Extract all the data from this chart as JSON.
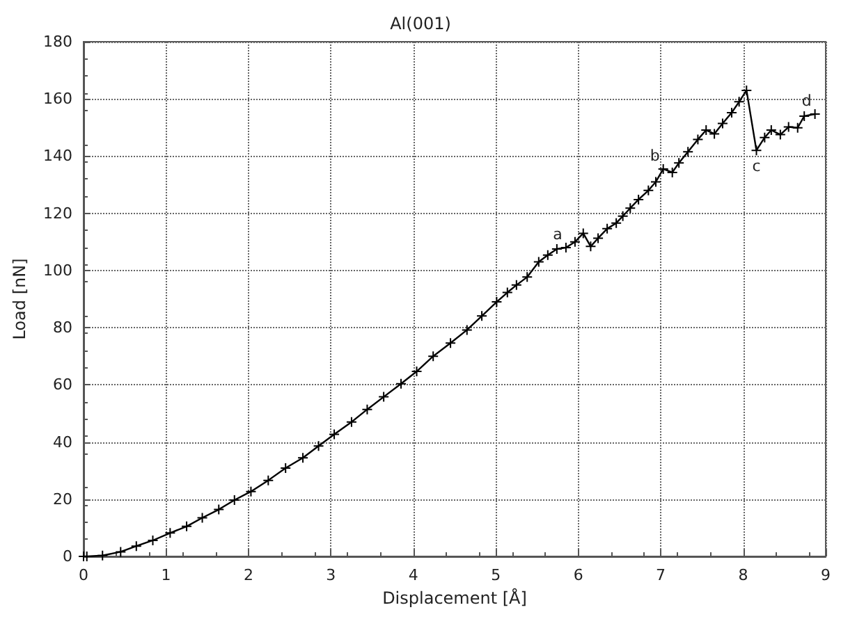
{
  "chart_data": {
    "type": "line",
    "title": "Al(001)",
    "xlabel": "Displacement [Å]",
    "ylabel": "Load [nN]",
    "x": [
      0,
      0.04,
      0.23,
      0.45,
      0.64,
      0.84,
      1.05,
      1.25,
      1.44,
      1.64,
      1.83,
      2.03,
      2.24,
      2.45,
      2.66,
      2.85,
      3.04,
      3.25,
      3.44,
      3.64,
      3.85,
      4.04,
      4.24,
      4.45,
      4.65,
      4.83,
      5.01,
      5.14,
      5.25,
      5.38,
      5.52,
      5.63,
      5.74,
      5.85,
      5.96,
      6.06,
      6.15,
      6.24,
      6.35,
      6.46,
      6.54,
      6.63,
      6.73,
      6.85,
      6.94,
      7.03,
      7.14,
      7.22,
      7.33,
      7.45,
      7.55,
      7.65,
      7.75,
      7.86,
      7.95,
      8.04,
      8.16,
      8.26,
      8.34,
      8.45,
      8.55,
      8.66,
      8.74,
      8.87
    ],
    "series": [
      {
        "color": "#000000",
        "values": [
          0,
          0,
          0.3,
          1.6,
          3.6,
          5.6,
          8.2,
          10.5,
          13.5,
          16.4,
          19.7,
          22.7,
          26.6,
          30.9,
          34.5,
          38.6,
          42.7,
          47,
          51.4,
          55.8,
          60.4,
          64.7,
          70,
          74.6,
          79.2,
          84.1,
          89,
          92.3,
          94.9,
          97.7,
          103,
          105.4,
          107.5,
          108,
          110,
          113,
          108.4,
          111.3,
          114.6,
          116.6,
          119,
          121.8,
          124.8,
          128,
          131,
          135.5,
          134.3,
          137.6,
          141.5,
          145.8,
          149.1,
          147.8,
          151.4,
          155.2,
          159,
          163,
          142,
          146.5,
          149.1,
          147.5,
          150.2,
          149.9,
          154,
          154.7
        ]
      }
    ],
    "xlim": [
      0,
      9
    ],
    "xticks": [
      0,
      1,
      2,
      3,
      4,
      5,
      6,
      7,
      8,
      9
    ],
    "ylim": [
      0,
      180
    ],
    "yticks": [
      0,
      20,
      40,
      60,
      80,
      100,
      120,
      140,
      160,
      180
    ],
    "grid": true,
    "marker": "cross",
    "line_style": "solid",
    "annotations": [
      {
        "text": "a",
        "x": 5.85,
        "y": 108
      },
      {
        "text": "b",
        "x": 7.03,
        "y": 135.5
      },
      {
        "text": "c",
        "x": 8.16,
        "y": 142
      },
      {
        "text": "d",
        "x": 8.87,
        "y": 154.7
      }
    ]
  }
}
